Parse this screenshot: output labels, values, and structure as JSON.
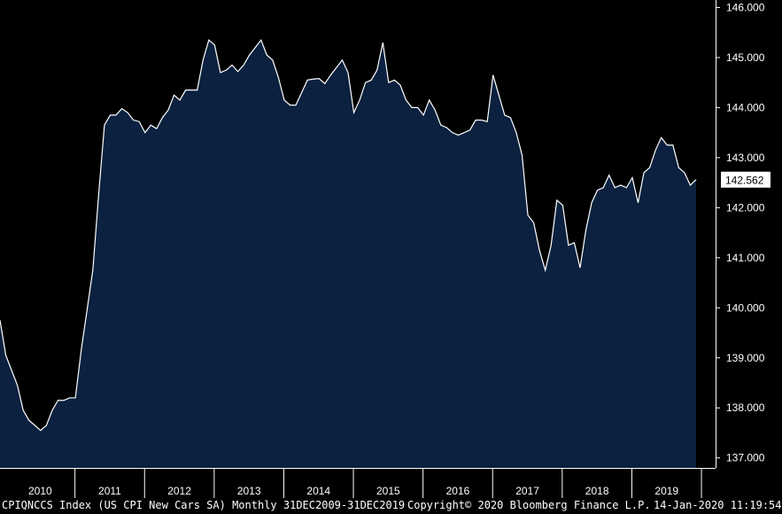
{
  "chart_data": {
    "type": "area",
    "ticker": "CPIQNCCS Index (US CPI New Cars SA)",
    "frequency": "Monthly",
    "date_range": "31DEC2009-31DEC2019",
    "last_value_label": "142.562",
    "ylim": [
      136.8,
      146.15
    ],
    "yticks": [
      "137.000",
      "138.000",
      "139.000",
      "140.000",
      "141.000",
      "142.000",
      "143.000",
      "144.000",
      "145.000",
      "146.000"
    ],
    "x_labels": [
      "2010",
      "2011",
      "2012",
      "2013",
      "2014",
      "2015",
      "2016",
      "2017",
      "2018",
      "2019"
    ],
    "series": [
      {
        "start": "2009-12",
        "values": [
          139.75,
          139.05,
          138.75,
          138.45,
          137.95,
          137.75,
          137.65,
          137.55,
          137.65,
          137.95,
          138.15,
          138.15,
          138.2,
          138.2,
          139.15,
          139.95,
          140.75,
          142.25,
          143.65,
          143.85,
          143.85,
          143.98,
          143.9,
          143.75,
          143.72,
          143.5,
          143.65,
          143.58,
          143.8,
          143.95,
          144.25,
          144.15,
          144.35,
          144.35,
          144.35,
          144.95,
          145.35,
          145.25,
          144.7,
          144.75,
          144.85,
          144.72,
          144.85,
          145.05,
          145.2,
          145.35,
          145.05,
          144.95,
          144.6,
          144.15,
          144.05,
          144.05,
          144.3,
          144.55,
          144.57,
          144.58,
          144.48,
          144.65,
          144.8,
          144.95,
          144.7,
          143.9,
          144.15,
          144.5,
          144.55,
          144.75,
          145.3,
          144.5,
          144.55,
          144.45,
          144.15,
          144.0,
          144.0,
          143.85,
          144.15,
          143.95,
          143.65,
          143.6,
          143.5,
          143.45,
          143.5,
          143.55,
          143.75,
          143.75,
          143.72,
          144.65,
          144.25,
          143.85,
          143.8,
          143.5,
          143.05,
          141.85,
          141.7,
          141.15,
          140.75,
          141.25,
          142.15,
          142.05,
          141.25,
          141.3,
          140.8,
          141.55,
          142.1,
          142.35,
          142.4,
          142.65,
          142.4,
          142.45,
          142.4,
          142.6,
          142.1,
          142.7,
          142.8,
          143.15,
          143.4,
          143.25,
          143.25,
          142.8,
          142.7,
          142.45,
          142.56
        ]
      }
    ],
    "grid": false,
    "legend": "none"
  },
  "footer": {
    "left": "CPIQNCCS Index (US CPI New Cars SA)  Monthly 31DEC2009-31DEC2019",
    "center": "Copyright© 2020 Bloomberg Finance L.P.",
    "right": "14-Jan-2020 11:19:54"
  },
  "colors": {
    "background": "#000000",
    "area_fill": "#0b213f",
    "line": "#ffffff",
    "axis": "#ffffff",
    "last_label_bg": "#ffffff"
  }
}
